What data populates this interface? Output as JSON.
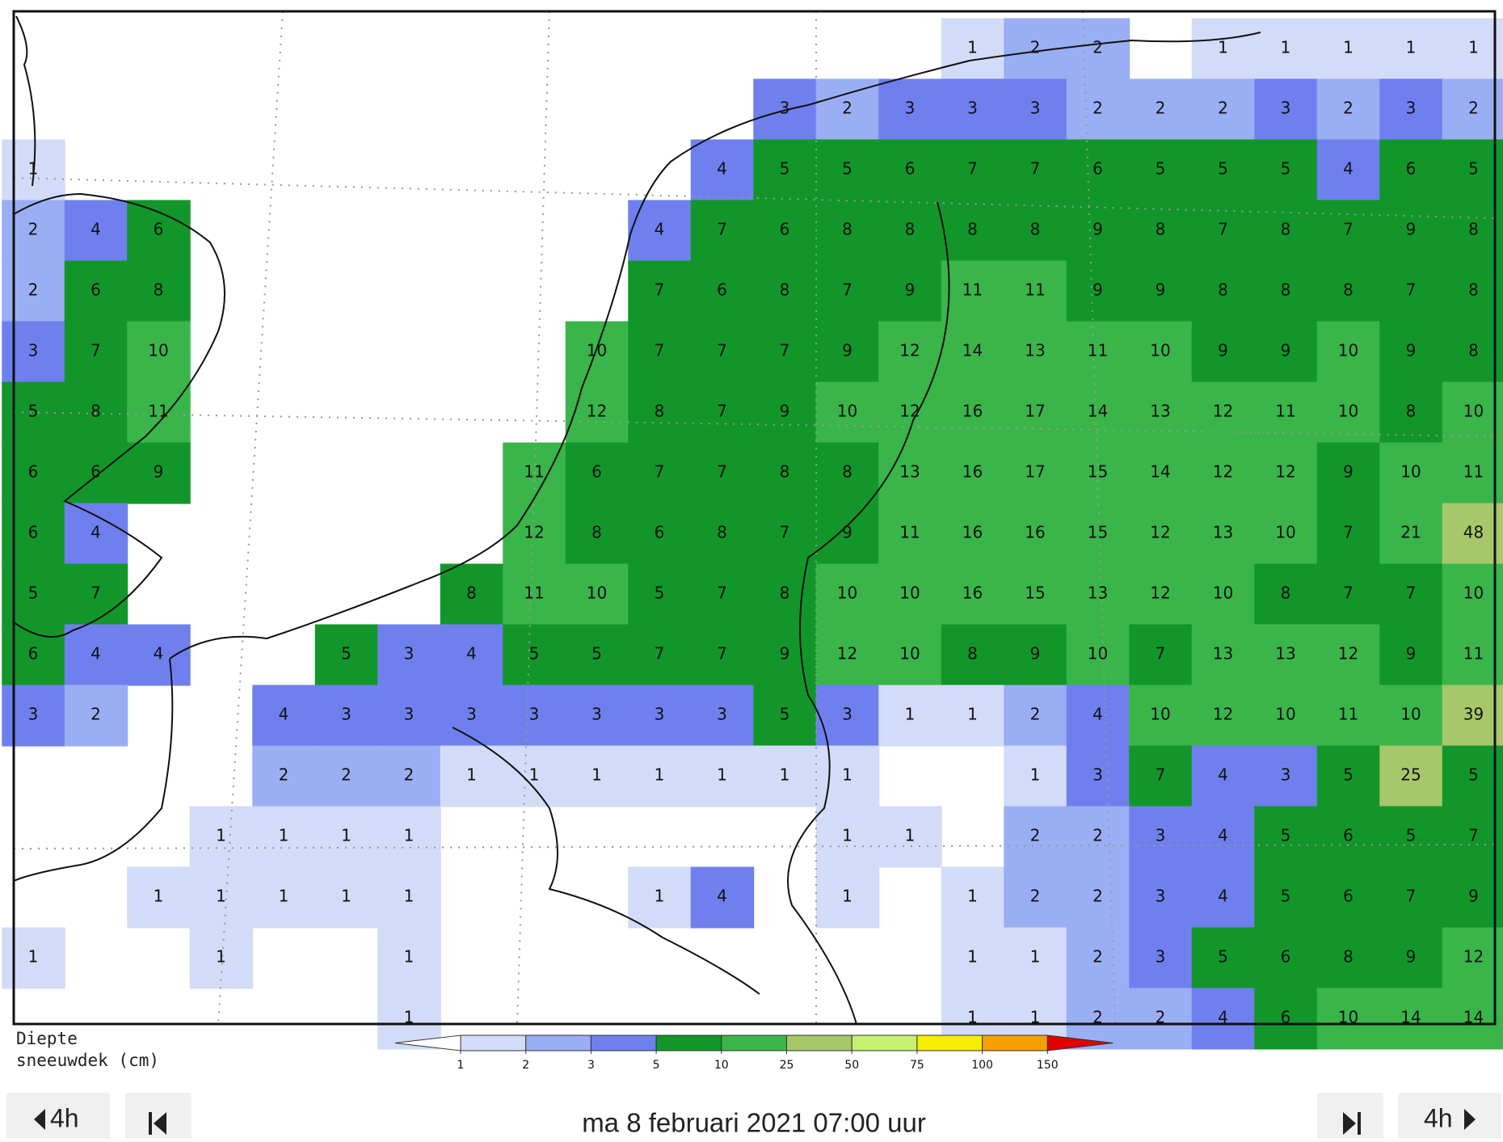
{
  "map": {
    "rows": [
      [
        null,
        null,
        null,
        null,
        null,
        null,
        null,
        null,
        null,
        null,
        null,
        null,
        null,
        null,
        null,
        1,
        2,
        2,
        null,
        1,
        1,
        1,
        1,
        1
      ],
      [
        null,
        null,
        null,
        null,
        null,
        null,
        null,
        null,
        null,
        null,
        null,
        null,
        3,
        2,
        3,
        3,
        3,
        2,
        2,
        2,
        3,
        2,
        3,
        2
      ],
      [
        1,
        null,
        null,
        null,
        null,
        null,
        null,
        null,
        null,
        null,
        null,
        4,
        5,
        5,
        6,
        7,
        7,
        6,
        5,
        5,
        5,
        4,
        6,
        5
      ],
      [
        2,
        4,
        6,
        null,
        null,
        null,
        null,
        null,
        null,
        null,
        4,
        7,
        6,
        8,
        8,
        8,
        8,
        9,
        8,
        7,
        8,
        7,
        9,
        8
      ],
      [
        2,
        6,
        8,
        null,
        null,
        null,
        null,
        null,
        null,
        null,
        7,
        6,
        8,
        7,
        9,
        11,
        11,
        9,
        9,
        8,
        8,
        8,
        7,
        8
      ],
      [
        3,
        7,
        10,
        null,
        null,
        null,
        null,
        null,
        null,
        10,
        7,
        7,
        7,
        9,
        12,
        14,
        13,
        11,
        10,
        9,
        9,
        10,
        9,
        8
      ],
      [
        5,
        8,
        11,
        null,
        null,
        null,
        null,
        null,
        null,
        12,
        8,
        7,
        9,
        10,
        12,
        16,
        17,
        14,
        13,
        12,
        11,
        10,
        8,
        10
      ],
      [
        6,
        6,
        9,
        null,
        null,
        null,
        null,
        null,
        11,
        6,
        7,
        7,
        8,
        8,
        13,
        16,
        17,
        15,
        14,
        12,
        12,
        9,
        10,
        11
      ],
      [
        6,
        4,
        null,
        null,
        null,
        null,
        null,
        null,
        12,
        8,
        6,
        8,
        7,
        9,
        11,
        16,
        16,
        15,
        12,
        13,
        10,
        7,
        21,
        48
      ],
      [
        5,
        7,
        null,
        null,
        null,
        null,
        null,
        8,
        11,
        10,
        5,
        7,
        8,
        10,
        10,
        16,
        15,
        13,
        12,
        10,
        8,
        7,
        7,
        10
      ],
      [
        6,
        4,
        4,
        null,
        null,
        5,
        3,
        4,
        5,
        5,
        7,
        7,
        9,
        12,
        10,
        8,
        9,
        10,
        7,
        13,
        13,
        12,
        9,
        11
      ],
      [
        3,
        2,
        null,
        null,
        4,
        3,
        3,
        3,
        3,
        3,
        3,
        3,
        5,
        3,
        1,
        1,
        2,
        4,
        10,
        12,
        10,
        11,
        10,
        39
      ],
      [
        null,
        null,
        null,
        null,
        2,
        2,
        2,
        1,
        1,
        1,
        1,
        1,
        1,
        1,
        null,
        null,
        1,
        3,
        7,
        4,
        3,
        5,
        25,
        5
      ],
      [
        null,
        null,
        null,
        1,
        1,
        1,
        1,
        null,
        null,
        null,
        null,
        null,
        null,
        1,
        1,
        null,
        2,
        2,
        3,
        4,
        5,
        6,
        5,
        7
      ],
      [
        null,
        null,
        1,
        1,
        1,
        1,
        1,
        null,
        null,
        null,
        1,
        4,
        null,
        1,
        null,
        1,
        2,
        2,
        3,
        4,
        5,
        6,
        7,
        9
      ],
      [
        1,
        null,
        null,
        1,
        null,
        null,
        1,
        null,
        null,
        null,
        null,
        null,
        null,
        null,
        null,
        1,
        1,
        2,
        3,
        5,
        6,
        8,
        9,
        12
      ],
      [
        null,
        null,
        null,
        null,
        null,
        null,
        1,
        null,
        null,
        null,
        null,
        null,
        null,
        null,
        null,
        1,
        1,
        2,
        2,
        4,
        6,
        10,
        14,
        14
      ]
    ]
  },
  "legend": {
    "title": [
      "Diepte",
      "sneeuwdek (cm)"
    ],
    "ticks": [
      1,
      2,
      3,
      5,
      10,
      25,
      50,
      75,
      100,
      150
    ],
    "colors": [
      "#ffffff",
      "#d2dcf8",
      "#9aaef4",
      "#6f80ee",
      "#12962a",
      "#3ab54a",
      "#a6c86a",
      "#c6f070",
      "#f4ee00",
      "#f6a000",
      "#e00000"
    ]
  },
  "controls": {
    "step_back": "4h",
    "step_forward": "4h",
    "date": "ma 8 februari 2021 07:00 uur"
  }
}
